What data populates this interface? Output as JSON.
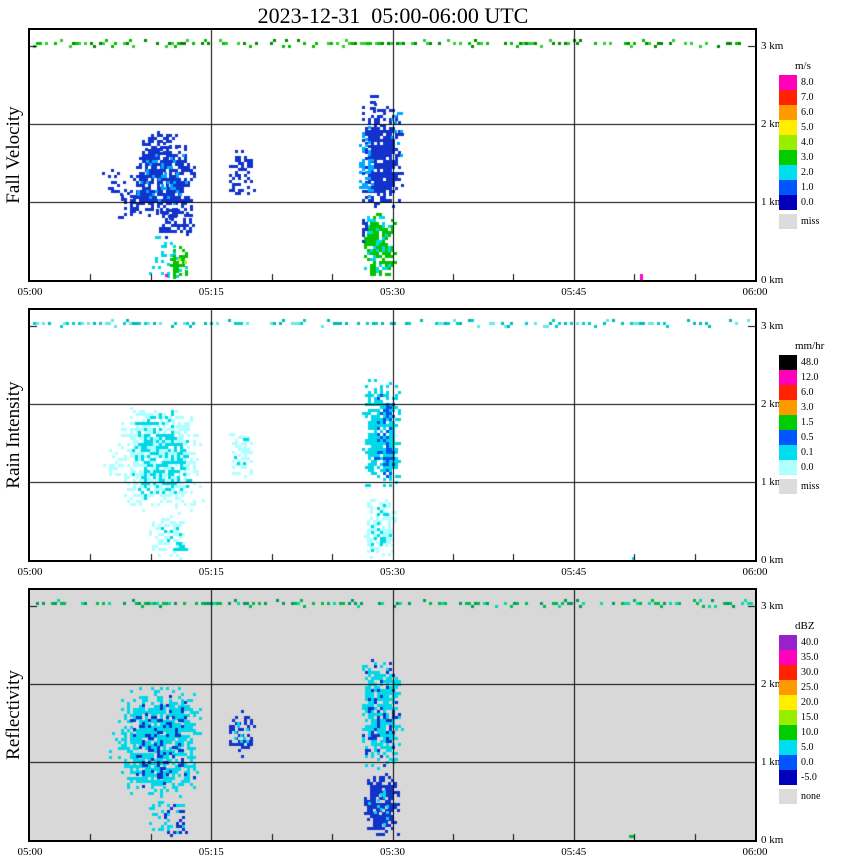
{
  "title": "2023-12-31  05:00-06:00 UTC",
  "chart_data": {
    "type": "heatmap",
    "description": "Time-height radar profiler quicklook with three stacked panels",
    "x_axis": {
      "start": "05:00",
      "end": "06:00",
      "tick_labels": [
        "05:00",
        "05:15",
        "05:30",
        "05:45",
        "06:00"
      ],
      "tick_minutes": [
        0,
        15,
        30,
        45,
        60
      ],
      "minor_tick_step_minutes": 5,
      "gridline_minutes": [
        15,
        30,
        45
      ]
    },
    "y_axis": {
      "unit": "km",
      "max_km": 3.2,
      "tick_labels": [
        "3 km",
        "2 km",
        "1 km",
        "0 km"
      ],
      "tick_km": [
        3,
        2,
        1,
        0
      ],
      "gridline_km": [
        1,
        2
      ]
    },
    "panels": [
      {
        "name": "fall-velocity",
        "label": "Fall Velocity",
        "background": "#ffffff",
        "legend": {
          "title": "m/s",
          "entries": [
            {
              "label": "8.0",
              "color": "#ff00bb"
            },
            {
              "label": "7.0",
              "color": "#ff2200"
            },
            {
              "label": "6.0",
              "color": "#ff9900"
            },
            {
              "label": "5.0",
              "color": "#ffee00"
            },
            {
              "label": "4.0",
              "color": "#99ee00"
            },
            {
              "label": "3.0",
              "color": "#00cc00"
            },
            {
              "label": "2.0",
              "color": "#00ddee"
            },
            {
              "label": "1.0",
              "color": "#0055ff"
            },
            {
              "label": "0.0",
              "color": "#0000bb"
            },
            {
              "label": "miss",
              "color": "#dcdcdc",
              "gap": true
            }
          ]
        },
        "top_band": {
          "height_km": 3.05,
          "colors": [
            "#00bb00",
            "#008800",
            "#33cc33"
          ],
          "density": 0.55
        },
        "echoes": [
          {
            "t0": 5.7,
            "t1": 8.0,
            "h0": 1.05,
            "h1": 1.5,
            "color": "#1133cc",
            "density": 0.22
          },
          {
            "t0": 7.0,
            "t1": 9.0,
            "h0": 0.8,
            "h1": 1.2,
            "color": "#1133cc",
            "density": 0.35
          },
          {
            "t0": 8.0,
            "t1": 13.6,
            "h0": 0.78,
            "h1": 1.8,
            "color": "#1133cc",
            "density": 1.0
          },
          {
            "t0": 9.0,
            "t1": 12.2,
            "h0": 1.55,
            "h1": 1.95,
            "color": "#1133cc",
            "density": 0.5
          },
          {
            "t0": 8.6,
            "t1": 13.0,
            "h0": 0.95,
            "h1": 1.65,
            "color": "#00a8ff",
            "density": 0.25
          },
          {
            "t0": 10.2,
            "t1": 13.8,
            "h0": 0.55,
            "h1": 0.95,
            "color": "#1133cc",
            "density": 0.6
          },
          {
            "t0": 9.6,
            "t1": 12.9,
            "h0": 0.03,
            "h1": 0.6,
            "color": "#00d8e8",
            "density": 0.3
          },
          {
            "t0": 11.3,
            "t1": 13.0,
            "h0": 0.03,
            "h1": 0.48,
            "color": "#00c400",
            "density": 0.75
          },
          {
            "t0": 12.0,
            "t1": 12.8,
            "h0": 0.12,
            "h1": 0.4,
            "color": "#aaee00",
            "density": 0.3
          },
          {
            "t0": 10.9,
            "t1": 11.3,
            "h0": 0.05,
            "h1": 0.15,
            "color": "#ff00cc",
            "density": 0.5
          },
          {
            "t0": 16.2,
            "t1": 18.6,
            "h0": 1.08,
            "h1": 1.7,
            "color": "#1133cc",
            "density": 0.55
          },
          {
            "t0": 27.2,
            "t1": 30.7,
            "h0": 0.9,
            "h1": 2.3,
            "color": "#1133cc",
            "density": 1.1
          },
          {
            "t0": 27.0,
            "t1": 28.4,
            "h0": 1.0,
            "h1": 2.05,
            "color": "#00a8ff",
            "density": 0.4
          },
          {
            "t0": 29.6,
            "t1": 30.8,
            "h0": 1.5,
            "h1": 2.3,
            "color": "#00a8ff",
            "density": 0.25
          },
          {
            "t0": 27.9,
            "t1": 28.9,
            "h0": 2.15,
            "h1": 2.45,
            "color": "#1133cc",
            "density": 0.4
          },
          {
            "t0": 27.4,
            "t1": 30.3,
            "h0": 0.05,
            "h1": 0.9,
            "color": "#00c400",
            "density": 1.0
          },
          {
            "t0": 27.4,
            "t1": 30.3,
            "h0": 0.05,
            "h1": 0.9,
            "color": "#00d8e8",
            "density": 0.25
          },
          {
            "t0": 27.2,
            "t1": 27.9,
            "h0": 0.3,
            "h1": 0.9,
            "color": "#1133cc",
            "density": 0.35
          },
          {
            "t0": 50.2,
            "t1": 50.7,
            "h0": 0.0,
            "h1": 0.15,
            "color": "#ff00cc",
            "density": 0.9
          }
        ]
      },
      {
        "name": "rain-intensity",
        "label": "Rain Intensity",
        "background": "#ffffff",
        "legend": {
          "title": "mm/hr",
          "entries": [
            {
              "label": "48.0",
              "color": "#000000"
            },
            {
              "label": "12.0",
              "color": "#ff00bb"
            },
            {
              "label": "6.0",
              "color": "#ff2200"
            },
            {
              "label": "3.0",
              "color": "#ff9900"
            },
            {
              "label": "1.5",
              "color": "#00cc00"
            },
            {
              "label": "0.5",
              "color": "#0055ff"
            },
            {
              "label": "0.1",
              "color": "#00ddee"
            },
            {
              "label": "0.0",
              "color": "#b0ffff"
            },
            {
              "label": "miss",
              "color": "#dcdcdc",
              "gap": true
            }
          ]
        },
        "top_band": {
          "height_km": 3.05,
          "colors": [
            "#00cccc",
            "#66e8e8",
            "#00b8b8"
          ],
          "density": 0.5
        },
        "echoes": [
          {
            "t0": 5.8,
            "t1": 8.2,
            "h0": 1.05,
            "h1": 1.5,
            "color": "#b0ffff",
            "density": 0.3
          },
          {
            "t0": 7.0,
            "t1": 14.2,
            "h0": 0.6,
            "h1": 2.0,
            "color": "#b0ffff",
            "density": 0.8
          },
          {
            "t0": 8.2,
            "t1": 13.4,
            "h0": 0.75,
            "h1": 1.8,
            "color": "#00d8e8",
            "density": 0.55
          },
          {
            "t0": 9.2,
            "t1": 12.4,
            "h0": 1.5,
            "h1": 2.0,
            "color": "#00d8e8",
            "density": 0.2
          },
          {
            "t0": 9.6,
            "t1": 13.0,
            "h0": 0.03,
            "h1": 0.62,
            "color": "#b0ffff",
            "density": 0.55
          },
          {
            "t0": 10.6,
            "t1": 13.0,
            "h0": 0.03,
            "h1": 0.5,
            "color": "#00d8e8",
            "density": 0.3
          },
          {
            "t0": 13.2,
            "t1": 14.6,
            "h0": 0.5,
            "h1": 0.9,
            "color": "#b0ffff",
            "density": 0.3
          },
          {
            "t0": 16.2,
            "t1": 18.6,
            "h0": 1.08,
            "h1": 1.7,
            "color": "#b0ffff",
            "density": 0.55
          },
          {
            "t0": 16.6,
            "t1": 18.2,
            "h0": 1.15,
            "h1": 1.6,
            "color": "#00d8e8",
            "density": 0.25
          },
          {
            "t0": 27.2,
            "t1": 30.7,
            "h0": 0.9,
            "h1": 2.35,
            "color": "#00d8e8",
            "density": 0.95
          },
          {
            "t0": 28.2,
            "t1": 30.3,
            "h0": 1.05,
            "h1": 2.2,
            "color": "#0055ee",
            "density": 0.5
          },
          {
            "t0": 27.4,
            "t1": 30.3,
            "h0": 0.03,
            "h1": 0.9,
            "color": "#b0ffff",
            "density": 0.75
          },
          {
            "t0": 27.7,
            "t1": 29.8,
            "h0": 0.1,
            "h1": 0.8,
            "color": "#00d8e8",
            "density": 0.35
          },
          {
            "t0": 49.6,
            "t1": 50.0,
            "h0": 0.0,
            "h1": 0.12,
            "color": "#00d8e8",
            "density": 0.6
          }
        ]
      },
      {
        "name": "reflectivity",
        "label": "Reflectivity",
        "background": "#d8d8d8",
        "legend": {
          "title": "dBZ",
          "entries": [
            {
              "label": "40.0",
              "color": "#9922cc"
            },
            {
              "label": "35.0",
              "color": "#ff00bb"
            },
            {
              "label": "30.0",
              "color": "#ff2200"
            },
            {
              "label": "25.0",
              "color": "#ff9900"
            },
            {
              "label": "20.0",
              "color": "#ffee00"
            },
            {
              "label": "15.0",
              "color": "#99ee00"
            },
            {
              "label": "10.0",
              "color": "#00cc00"
            },
            {
              "label": "5.0",
              "color": "#00ddee"
            },
            {
              "label": "0.0",
              "color": "#0055ff"
            },
            {
              "label": "-5.0",
              "color": "#0000bb"
            },
            {
              "label": "none",
              "color": "#dcdcdc",
              "gap": true
            }
          ]
        },
        "top_band": {
          "height_km": 3.05,
          "colors": [
            "#00bb44",
            "#00ddaa",
            "#009966"
          ],
          "density": 0.55
        },
        "echoes": [
          {
            "t0": 5.8,
            "t1": 8.2,
            "h0": 1.05,
            "h1": 1.5,
            "color": "#00d8e8",
            "density": 0.3
          },
          {
            "t0": 7.0,
            "t1": 14.2,
            "h0": 0.55,
            "h1": 2.0,
            "color": "#00d8e8",
            "density": 0.9
          },
          {
            "t0": 8.0,
            "t1": 13.6,
            "h0": 0.7,
            "h1": 1.9,
            "color": "#1133cc",
            "density": 0.3
          },
          {
            "t0": 9.6,
            "t1": 13.0,
            "h0": 0.03,
            "h1": 0.62,
            "color": "#00d8e8",
            "density": 0.4
          },
          {
            "t0": 10.8,
            "t1": 13.0,
            "h0": 0.03,
            "h1": 0.5,
            "color": "#1133cc",
            "density": 0.4
          },
          {
            "t0": 16.2,
            "t1": 18.6,
            "h0": 1.08,
            "h1": 1.7,
            "color": "#1133cc",
            "density": 0.55
          },
          {
            "t0": 16.6,
            "t1": 18.3,
            "h0": 1.15,
            "h1": 1.62,
            "color": "#00d8e8",
            "density": 0.25
          },
          {
            "t0": 27.2,
            "t1": 30.7,
            "h0": 0.9,
            "h1": 2.35,
            "color": "#00d8e8",
            "density": 1.0
          },
          {
            "t0": 27.2,
            "t1": 30.7,
            "h0": 0.9,
            "h1": 2.35,
            "color": "#1133cc",
            "density": 0.22
          },
          {
            "t0": 27.4,
            "t1": 30.5,
            "h0": 0.03,
            "h1": 0.9,
            "color": "#1133cc",
            "density": 0.95
          },
          {
            "t0": 27.7,
            "t1": 30.1,
            "h0": 0.15,
            "h1": 0.8,
            "color": "#00d8e8",
            "density": 0.3
          },
          {
            "t0": 49.3,
            "t1": 49.9,
            "h0": 0.0,
            "h1": 0.1,
            "color": "#00bb44",
            "density": 0.7
          }
        ]
      }
    ]
  }
}
